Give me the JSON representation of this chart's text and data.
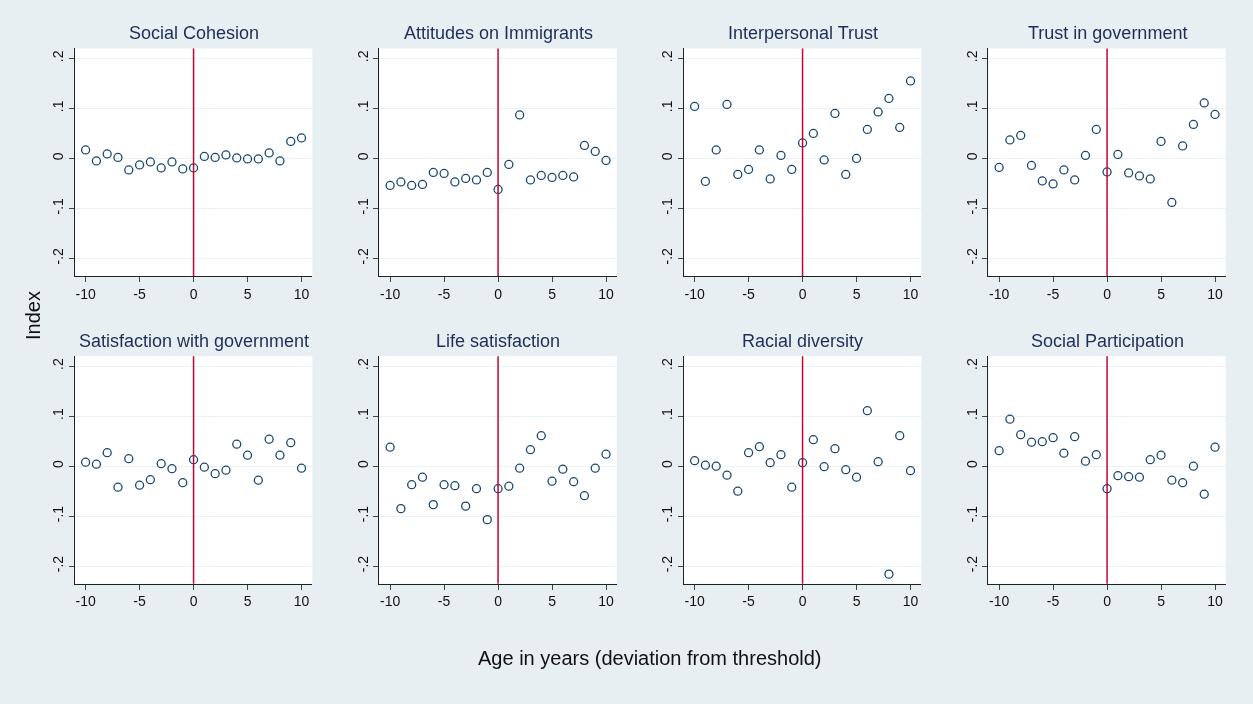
{
  "chart_data": [
    {
      "type": "scatter",
      "title": "Social Cohesion",
      "annotations": [
        "Age in years (deviation from threshold)"
      ],
      "ylabel": "Index",
      "color": "#1a476f",
      "marker": "circle",
      "grid": "y",
      "xlim": [
        -11,
        11
      ],
      "xticks": [
        -10,
        -5,
        0,
        5,
        10
      ],
      "ylim": [
        -0.235,
        0.22
      ],
      "yticks": [
        {
          "value": -0.2,
          "label": "-.2"
        },
        {
          "value": -0.1,
          "label": "-.1"
        },
        0,
        {
          "value": 0.1,
          "label": ".1"
        },
        {
          "value": 0.2,
          "label": ".2"
        }
      ],
      "ref_lines": [
        {
          "axis": "x",
          "value": 0,
          "color": "#c10534"
        }
      ],
      "x": [
        -10,
        -9,
        -8,
        -7,
        -6,
        -5,
        -4,
        -3,
        -2,
        -1,
        0,
        1,
        2,
        3,
        4,
        5,
        6,
        7,
        8,
        9,
        10
      ],
      "values": [
        0.017,
        -0.005,
        0.009,
        0.002,
        -0.023,
        -0.013,
        -0.007,
        -0.019,
        -0.007,
        -0.021,
        -0.019,
        0.004,
        0.002,
        0.007,
        0.001,
        -0.001,
        -0.001,
        0.011,
        -0.005,
        0.034,
        0.041
      ]
    },
    {
      "type": "scatter",
      "title": "Attitudes on Immigrants",
      "color": "#1a476f",
      "marker": "circle",
      "grid": "y",
      "xlim": [
        -11,
        11
      ],
      "xticks": [
        -10,
        -5,
        0,
        5,
        10
      ],
      "ylim": [
        -0.235,
        0.22
      ],
      "yticks": [
        {
          "value": -0.2,
          "label": "-.2"
        },
        {
          "value": -0.1,
          "label": "-.1"
        },
        0,
        {
          "value": 0.1,
          "label": ".1"
        },
        {
          "value": 0.2,
          "label": ".2"
        }
      ],
      "ref_lines": [
        {
          "axis": "x",
          "value": 0,
          "color": "#c10534"
        }
      ],
      "x": [
        -10,
        -9,
        -8,
        -7,
        -6,
        -5,
        -4,
        -3,
        -2,
        -1,
        0,
        1,
        2,
        3,
        4,
        5,
        6,
        7,
        8,
        9,
        10
      ],
      "values": [
        -0.054,
        -0.047,
        -0.054,
        -0.052,
        -0.028,
        -0.03,
        -0.047,
        -0.04,
        -0.043,
        -0.028,
        -0.062,
        -0.012,
        0.087,
        -0.043,
        -0.034,
        -0.038,
        -0.034,
        -0.037,
        0.026,
        0.014,
        -0.004
      ]
    },
    {
      "type": "scatter",
      "title": "Interpersonal Trust",
      "color": "#1a476f",
      "marker": "circle",
      "grid": "y",
      "xlim": [
        -11,
        11
      ],
      "xticks": [
        -10,
        -5,
        0,
        5,
        10
      ],
      "ylim": [
        -0.235,
        0.22
      ],
      "yticks": [
        {
          "value": -0.2,
          "label": "-.2"
        },
        {
          "value": -0.1,
          "label": "-.1"
        },
        0,
        {
          "value": 0.1,
          "label": ".1"
        },
        {
          "value": 0.2,
          "label": ".2"
        }
      ],
      "ref_lines": [
        {
          "axis": "x",
          "value": 0,
          "color": "#c10534"
        }
      ],
      "x": [
        -10,
        -9,
        -8,
        -7,
        -6,
        -5,
        -4,
        -3,
        -2,
        -1,
        0,
        1,
        2,
        3,
        4,
        5,
        6,
        7,
        8,
        9,
        10
      ],
      "values": [
        0.104,
        -0.046,
        0.017,
        0.108,
        -0.032,
        -0.022,
        0.017,
        -0.041,
        0.006,
        -0.022,
        0.031,
        0.05,
        -0.003,
        0.09,
        -0.032,
        0.0,
        0.058,
        0.093,
        0.12,
        0.062,
        0.155
      ]
    },
    {
      "type": "scatter",
      "title": "Trust in government",
      "color": "#1a476f",
      "marker": "circle",
      "grid": "y",
      "xlim": [
        -11,
        11
      ],
      "xticks": [
        -10,
        -5,
        0,
        5,
        10
      ],
      "ylim": [
        -0.235,
        0.22
      ],
      "yticks": [
        {
          "value": -0.2,
          "label": "-.2"
        },
        {
          "value": -0.1,
          "label": "-.1"
        },
        0,
        {
          "value": 0.1,
          "label": ".1"
        },
        {
          "value": 0.2,
          "label": ".2"
        }
      ],
      "ref_lines": [
        {
          "axis": "x",
          "value": 0,
          "color": "#c10534"
        }
      ],
      "x": [
        -10,
        -9,
        -8,
        -7,
        -6,
        -5,
        -4,
        -3,
        -2,
        -1,
        0,
        1,
        2,
        3,
        4,
        5,
        6,
        7,
        8,
        9,
        10
      ],
      "values": [
        -0.018,
        0.037,
        0.046,
        -0.014,
        -0.045,
        -0.051,
        -0.023,
        -0.043,
        0.006,
        0.058,
        -0.027,
        0.008,
        -0.029,
        -0.035,
        -0.041,
        0.034,
        -0.088,
        0.025,
        0.068,
        0.111,
        0.088
      ]
    },
    {
      "type": "scatter",
      "title": "Satisfaction with government",
      "color": "#1a476f",
      "marker": "circle",
      "grid": "y",
      "xlim": [
        -11,
        11
      ],
      "xticks": [
        -10,
        -5,
        0,
        5,
        10
      ],
      "ylim": [
        -0.235,
        0.22
      ],
      "yticks": [
        {
          "value": -0.2,
          "label": "-.2"
        },
        {
          "value": -0.1,
          "label": "-.1"
        },
        0,
        {
          "value": 0.1,
          "label": ".1"
        },
        {
          "value": 0.2,
          "label": ".2"
        }
      ],
      "ref_lines": [
        {
          "axis": "x",
          "value": 0,
          "color": "#c10534"
        }
      ],
      "x": [
        -10,
        -9,
        -8,
        -7,
        -6,
        -5,
        -4,
        -3,
        -2,
        -1,
        0,
        1,
        2,
        3,
        4,
        5,
        6,
        7,
        8,
        9,
        10
      ],
      "values": [
        0.008,
        0.004,
        0.027,
        -0.042,
        0.015,
        -0.038,
        -0.027,
        0.005,
        -0.005,
        -0.033,
        0.013,
        -0.002,
        -0.015,
        -0.008,
        0.044,
        0.022,
        -0.028,
        0.054,
        0.022,
        0.047,
        -0.004
      ]
    },
    {
      "type": "scatter",
      "title": "Life satisfaction",
      "color": "#1a476f",
      "marker": "circle",
      "grid": "y",
      "xlim": [
        -11,
        11
      ],
      "xticks": [
        -10,
        -5,
        0,
        5,
        10
      ],
      "ylim": [
        -0.235,
        0.22
      ],
      "yticks": [
        {
          "value": -0.2,
          "label": "-.2"
        },
        {
          "value": -0.1,
          "label": "-.1"
        },
        0,
        {
          "value": 0.1,
          "label": ".1"
        },
        {
          "value": 0.2,
          "label": ".2"
        }
      ],
      "ref_lines": [
        {
          "axis": "x",
          "value": 0,
          "color": "#c10534"
        }
      ],
      "x": [
        -10,
        -9,
        -8,
        -7,
        -6,
        -5,
        -4,
        -3,
        -2,
        -1,
        0,
        1,
        2,
        3,
        4,
        5,
        6,
        7,
        8,
        9,
        10
      ],
      "values": [
        0.038,
        -0.085,
        -0.037,
        -0.022,
        -0.077,
        -0.037,
        -0.039,
        -0.08,
        -0.045,
        -0.107,
        -0.045,
        -0.04,
        -0.004,
        0.033,
        0.061,
        -0.03,
        -0.006,
        -0.031,
        -0.059,
        -0.004,
        0.024
      ]
    },
    {
      "type": "scatter",
      "title": "Racial diversity",
      "color": "#1a476f",
      "marker": "circle",
      "grid": "y",
      "xlim": [
        -11,
        11
      ],
      "xticks": [
        -10,
        -5,
        0,
        5,
        10
      ],
      "ylim": [
        -0.235,
        0.22
      ],
      "yticks": [
        {
          "value": -0.2,
          "label": "-.2"
        },
        {
          "value": -0.1,
          "label": "-.1"
        },
        0,
        {
          "value": 0.1,
          "label": ".1"
        },
        {
          "value": 0.2,
          "label": ".2"
        }
      ],
      "ref_lines": [
        {
          "axis": "x",
          "value": 0,
          "color": "#c10534"
        }
      ],
      "x": [
        -10,
        -9,
        -8,
        -7,
        -6,
        -5,
        -4,
        -3,
        -2,
        -1,
        0,
        1,
        2,
        3,
        4,
        5,
        6,
        7,
        8,
        9,
        10
      ],
      "values": [
        0.011,
        0.002,
        0.0,
        -0.018,
        -0.05,
        0.027,
        0.039,
        0.007,
        0.023,
        -0.042,
        0.007,
        0.053,
        -0.001,
        0.035,
        -0.007,
        -0.022,
        0.111,
        0.009,
        -0.216,
        0.061,
        -0.009
      ]
    },
    {
      "type": "scatter",
      "title": "Social Participation",
      "color": "#1a476f",
      "marker": "circle",
      "grid": "y",
      "xlim": [
        -11,
        11
      ],
      "xticks": [
        -10,
        -5,
        0,
        5,
        10
      ],
      "ylim": [
        -0.235,
        0.22
      ],
      "yticks": [
        {
          "value": -0.2,
          "label": "-.2"
        },
        {
          "value": -0.1,
          "label": "-.1"
        },
        0,
        {
          "value": 0.1,
          "label": ".1"
        },
        {
          "value": 0.2,
          "label": ".2"
        }
      ],
      "ref_lines": [
        {
          "axis": "x",
          "value": 0,
          "color": "#c10534"
        }
      ],
      "x": [
        -10,
        -9,
        -8,
        -7,
        -6,
        -5,
        -4,
        -3,
        -2,
        -1,
        0,
        1,
        2,
        3,
        4,
        5,
        6,
        7,
        8,
        9,
        10
      ],
      "values": [
        0.031,
        0.094,
        0.063,
        0.048,
        0.049,
        0.057,
        0.026,
        0.059,
        0.01,
        0.023,
        -0.045,
        -0.019,
        -0.021,
        -0.022,
        0.013,
        0.022,
        -0.028,
        -0.033,
        0.0,
        -0.056,
        0.038
      ]
    }
  ]
}
